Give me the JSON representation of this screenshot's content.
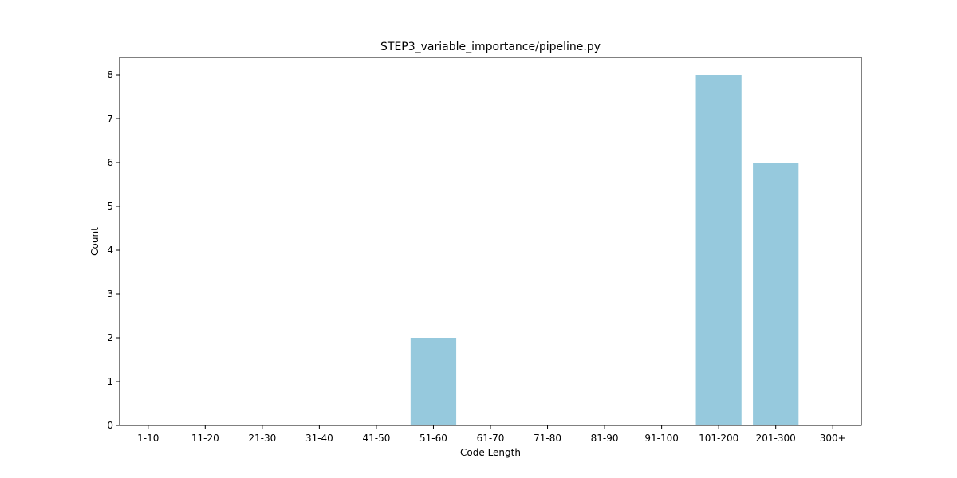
{
  "chart_data": {
    "type": "bar",
    "title": "STEP3_variable_importance/pipeline.py",
    "xlabel": "Code Length",
    "ylabel": "Count",
    "categories": [
      "1-10",
      "11-20",
      "21-30",
      "31-40",
      "41-50",
      "51-60",
      "61-70",
      "71-80",
      "81-90",
      "91-100",
      "101-200",
      "201-300",
      "300+"
    ],
    "values": [
      0,
      0,
      0,
      0,
      0,
      2,
      0,
      0,
      0,
      0,
      8,
      6,
      0
    ],
    "ylim": [
      0,
      8.4
    ],
    "yticks": [
      0,
      1,
      2,
      3,
      4,
      5,
      6,
      7,
      8
    ],
    "grid": false,
    "bar_color": "#96c9dd"
  }
}
